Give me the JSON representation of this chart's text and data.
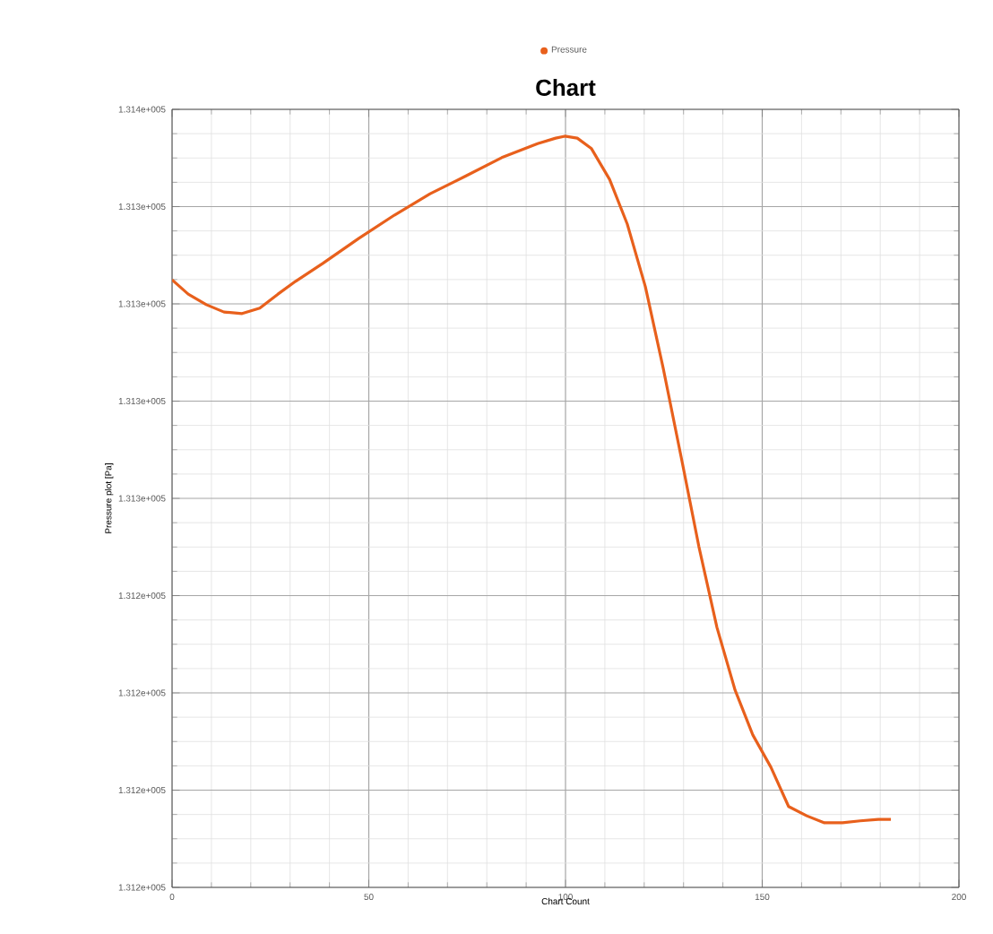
{
  "chart_data": {
    "type": "line",
    "title": "Chart",
    "xlabel": "Chart Count",
    "ylabel": "Pressure plot [Pa]",
    "xlim": [
      0,
      200
    ],
    "xticks": [
      0,
      50,
      100,
      150,
      200
    ],
    "ylim": [
      131170,
      131370
    ],
    "yticks": [
      {
        "value": 131170,
        "label": "1.312e+005"
      },
      {
        "value": 131195,
        "label": "1.312e+005"
      },
      {
        "value": 131220,
        "label": "1.312e+005"
      },
      {
        "value": 131245,
        "label": "1.312e+005"
      },
      {
        "value": 131270,
        "label": "1.313e+005"
      },
      {
        "value": 131295,
        "label": "1.313e+005"
      },
      {
        "value": 131320,
        "label": "1.313e+005"
      },
      {
        "value": 131345,
        "label": "1.313e+005"
      },
      {
        "value": 131370,
        "label": "1.314e+005"
      }
    ],
    "grid": true,
    "legend": "top",
    "series": [
      {
        "name": "Pressure",
        "color": "#e8601c",
        "x": [
          0,
          4.1,
          8.7,
          13.2,
          17.8,
          22.3,
          26.9,
          31.4,
          38.3,
          47.4,
          56.5,
          65.6,
          74.7,
          83.8,
          92.9,
          97.5,
          99.8,
          103,
          106.6,
          111.2,
          115.7,
          120.3,
          124.8,
          129.4,
          133.9,
          138.5,
          143.1,
          147.6,
          152.2,
          156.7,
          161.3,
          165.8,
          170.4,
          174.9,
          179.5,
          182.7
        ],
        "values": [
          131326.2,
          131322.5,
          131319.8,
          131317.9,
          131317.5,
          131318.9,
          131322.5,
          131325.8,
          131330.4,
          131336.8,
          131342.8,
          131348.3,
          131352.9,
          131357.6,
          131361.2,
          131362.6,
          131363.1,
          131362.6,
          131359.9,
          131352.0,
          131340.5,
          131324.4,
          131303.6,
          131280.6,
          131257.6,
          131236.8,
          131220.7,
          131209.2,
          131200.9,
          131190.8,
          131188.4,
          131186.6,
          131186.6,
          131187.1,
          131187.5,
          131187.5
        ]
      }
    ]
  }
}
